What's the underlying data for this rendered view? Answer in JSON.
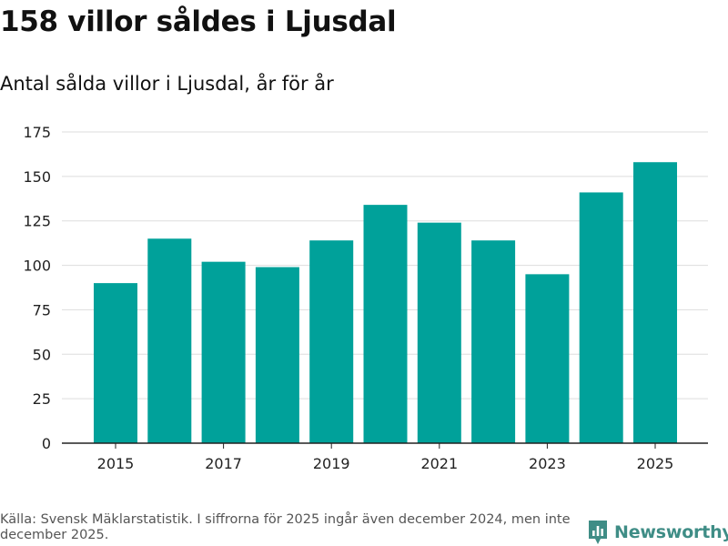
{
  "header": {
    "title": "158 villor såldes i Ljusdal",
    "subtitle": "Antal sålda villor i Ljusdal, år för år"
  },
  "chart_data": {
    "type": "bar",
    "title": "158 villor såldes i Ljusdal",
    "subtitle": "Antal sålda villor i Ljusdal, år för år",
    "categories": [
      "2015",
      "2016",
      "2017",
      "2018",
      "2019",
      "2020",
      "2021",
      "2022",
      "2023",
      "2024",
      "2025"
    ],
    "values": [
      90,
      115,
      102,
      99,
      114,
      134,
      124,
      114,
      95,
      141,
      158
    ],
    "ylim": [
      0,
      175
    ],
    "yticks": [
      0,
      25,
      50,
      75,
      100,
      125,
      150,
      175
    ],
    "xtick_labels": [
      "2015",
      "2017",
      "2019",
      "2021",
      "2023",
      "2025"
    ],
    "xlabel": "",
    "ylabel": "",
    "grid": true,
    "bar_color": "#00a19a"
  },
  "footer": {
    "source": "Källa: Svensk Mäklarstatistik. I siffrorna för 2025 ingår även december 2024, men inte december 2025.",
    "brand": "Newsworthy",
    "brand_color": "#3f8d86"
  }
}
